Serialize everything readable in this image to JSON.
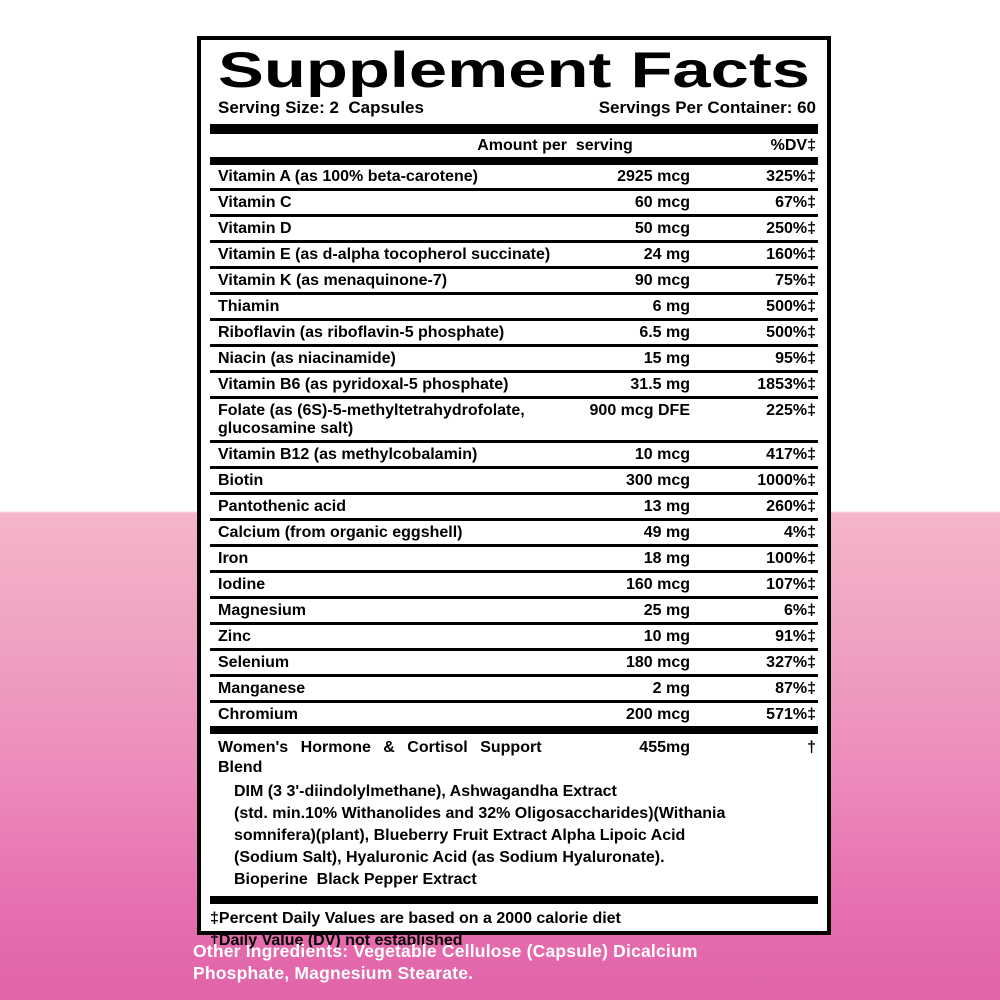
{
  "colors": {
    "panel_bg": "#ffffff",
    "panel_border": "#000000",
    "text": "#000000",
    "footer_text": "#ffffff",
    "pink_light": "#f4b5c9",
    "pink_deep": "#e163a8"
  },
  "panel": {
    "title": "Supplement Facts",
    "serving_size": "Serving Size: 2  Capsules",
    "servings_per_container": "Servings Per Container: 60",
    "col_amount_header": "Amount per  serving",
    "col_dv_header": "%DV‡",
    "rows": [
      {
        "name": "Vitamin A (as 100% beta-carotene)",
        "amount": "2925 mcg",
        "dv": "325%‡"
      },
      {
        "name": "Vitamin C",
        "amount": "60 mcg",
        "dv": "67%‡"
      },
      {
        "name": "Vitamin D",
        "amount": "50 mcg",
        "dv": "250%‡"
      },
      {
        "name": "Vitamin E (as d-alpha tocopherol succinate)",
        "amount": "24 mg",
        "dv": "160%‡"
      },
      {
        "name": "Vitamin K (as menaquinone-7)",
        "amount": "90 mcg",
        "dv": "75%‡"
      },
      {
        "name": "Thiamin",
        "amount": "6 mg",
        "dv": "500%‡"
      },
      {
        "name": "Riboflavin (as riboflavin-5 phosphate)",
        "amount": "6.5 mg",
        "dv": "500%‡"
      },
      {
        "name": "Niacin (as niacinamide)",
        "amount": "15 mg",
        "dv": "95%‡"
      },
      {
        "name": "Vitamin B6 (as pyridoxal-5 phosphate)",
        "amount": "31.5 mg",
        "dv": "1853%‡"
      },
      {
        "name": "Folate (as (6S)-5-methyltetrahydrofolate,",
        "name_line2": "glucosamine salt)",
        "amount": "900 mcg DFE",
        "dv": "225%‡"
      },
      {
        "name": "Vitamin B12 (as methylcobalamin)",
        "amount": "10 mcg",
        "dv": "417%‡"
      },
      {
        "name": "Biotin",
        "amount": "300 mcg",
        "dv": "1000%‡"
      },
      {
        "name": "Pantothenic acid",
        "amount": "13 mg",
        "dv": "260%‡"
      },
      {
        "name": "Calcium (from organic eggshell)",
        "amount": "49 mg",
        "dv": "4%‡"
      },
      {
        "name": "Iron",
        "amount": "18 mg",
        "dv": "100%‡"
      },
      {
        "name": "Iodine",
        "amount": "160 mcg",
        "dv": "107%‡"
      },
      {
        "name": "Magnesium",
        "amount": "25 mg",
        "dv": "6%‡"
      },
      {
        "name": "Zinc",
        "amount": "10 mg",
        "dv": "91%‡"
      },
      {
        "name": "Selenium",
        "amount": "180 mcg",
        "dv": "327%‡"
      },
      {
        "name": "Manganese",
        "amount": "2 mg",
        "dv": "87%‡"
      },
      {
        "name": "Chromium",
        "amount": "200 mcg",
        "dv": "571%‡"
      }
    ],
    "blend": {
      "title": "Women's Hormone & Cortisol Support Blend",
      "amount": "455mg",
      "dv": "†",
      "lines": [
        "DIM (3 3'-diindolylmethane), Ashwagandha Extract",
        "(std. min.10% Withanolides and 32% Oligosaccharides)(Withania",
        "somnifera)(plant), Blueberry Fruit Extract Alpha Lipoic Acid",
        "(Sodium Salt), Hyaluronic Acid (as Sodium Hyaluronate).",
        "Bioperine  Black Pepper Extract"
      ]
    },
    "footnotes": [
      "‡Percent Daily Values are based on a 2000 calorie diet",
      "†Daily Value (DV) not established"
    ]
  },
  "other_ingredients": {
    "line1": "Other Ingredients: Vegetable Cellulose (Capsule) Dicalcium",
    "line2": "Phosphate, Magnesium Stearate."
  }
}
